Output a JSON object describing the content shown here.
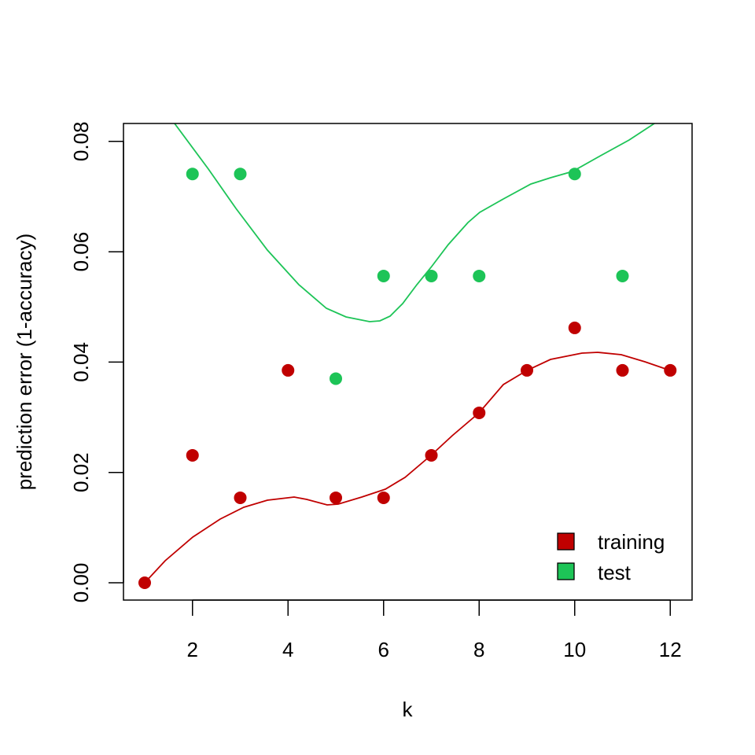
{
  "chart_data": {
    "type": "scatter",
    "title": "",
    "xlabel": "k",
    "ylabel": "prediction error (1-accuracy)",
    "x_ticks": [
      "2",
      "4",
      "6",
      "8",
      "10",
      "12"
    ],
    "y_ticks": [
      "0.00",
      "0.02",
      "0.04",
      "0.06",
      "0.08"
    ],
    "xlim": [
      0.7,
      12.6
    ],
    "ylim": [
      -0.003,
      0.083
    ],
    "grid": false,
    "legend_position": "bottom-right",
    "x": [
      1,
      2,
      3,
      4,
      5,
      6,
      7,
      8,
      9,
      10,
      11,
      12
    ],
    "series": [
      {
        "name": "training",
        "color": "#C00000",
        "x": [
          1,
          2,
          3,
          4,
          5,
          6,
          7,
          8,
          9,
          10,
          11,
          12
        ],
        "values": [
          0.0,
          0.0231,
          0.0154,
          0.0385,
          0.0154,
          0.0154,
          0.0231,
          0.0308,
          0.0385,
          0.0462,
          0.0385,
          0.0385
        ],
        "smooth_line": true
      },
      {
        "name": "test",
        "color": "#1DC457",
        "x": [
          2,
          3,
          5,
          6,
          7,
          8,
          10,
          11
        ],
        "values": [
          0.0741,
          0.0741,
          0.037,
          0.0556,
          0.0556,
          0.0556,
          0.0741,
          0.0556
        ],
        "smooth_line": true
      }
    ]
  },
  "legend": {
    "items": [
      {
        "label": "training",
        "color": "#C00000"
      },
      {
        "label": "test",
        "color": "#1DC457"
      }
    ]
  }
}
